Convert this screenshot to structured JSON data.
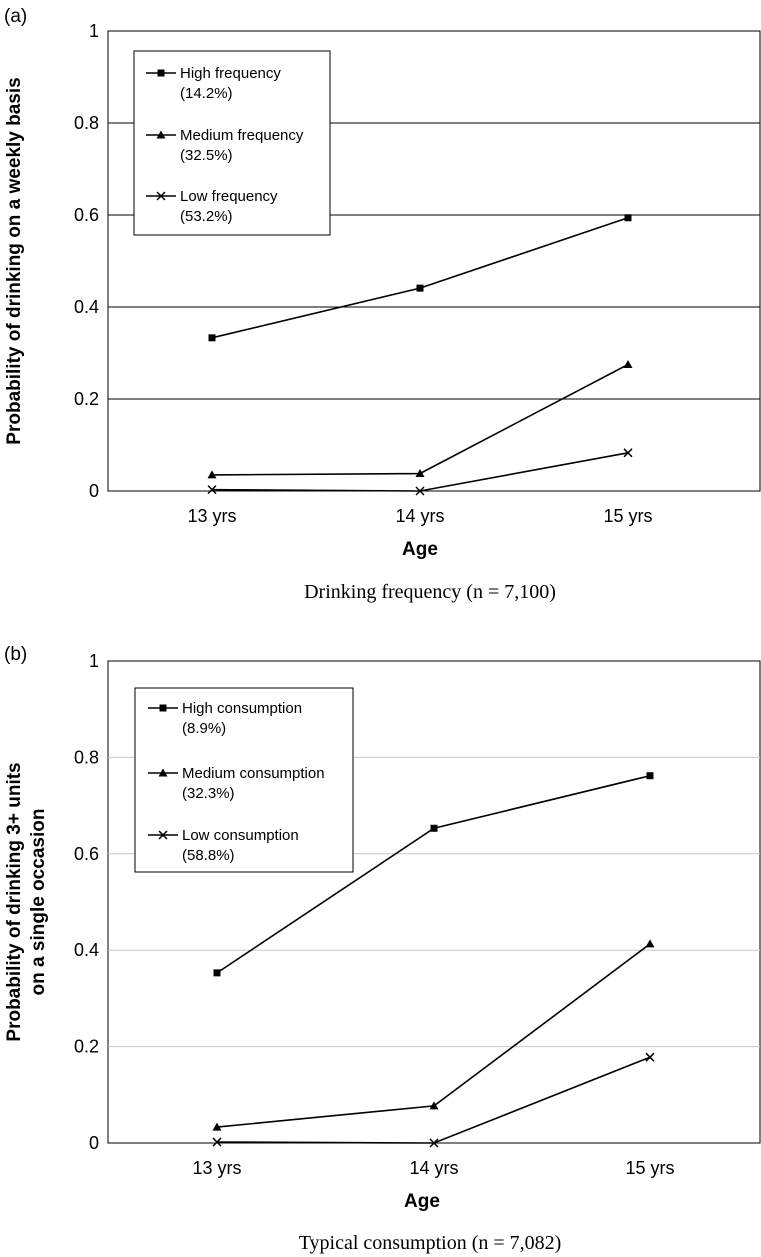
{
  "chart_data": [
    {
      "panel_label": "(a)",
      "type": "line",
      "categories": [
        "13 yrs",
        "14 yrs",
        "15 yrs"
      ],
      "xlabel": "Age",
      "ylabel": "Probability of drinking on a weekly basis",
      "ylim": [
        0,
        1
      ],
      "yticks": [
        "0",
        "0.2",
        "0.4",
        "0.6",
        "0.8",
        "1"
      ],
      "grid": "horizontal",
      "legend_position": "top-left",
      "caption": "Drinking frequency (n = 7,100)",
      "series": [
        {
          "name": "High frequency",
          "share": "(14.2%)",
          "marker": "square",
          "values": [
            0.333,
            0.441,
            0.594
          ]
        },
        {
          "name": "Medium frequency",
          "share": "(32.5%)",
          "marker": "triangle",
          "values": [
            0.035,
            0.038,
            0.275
          ]
        },
        {
          "name": "Low frequency",
          "share": "(53.2%)",
          "marker": "x",
          "values": [
            0.003,
            0.0,
            0.083
          ]
        }
      ]
    },
    {
      "panel_label": "(b)",
      "type": "line",
      "categories": [
        "13 yrs",
        "14 yrs",
        "15 yrs"
      ],
      "xlabel": "Age",
      "ylabel_lines": [
        "Probability of drinking 3+ units",
        "on a single occasion"
      ],
      "ylim": [
        0,
        1
      ],
      "yticks": [
        "0",
        "0.2",
        "0.4",
        "0.6",
        "0.8",
        "1"
      ],
      "grid": "horizontal",
      "legend_position": "top-left",
      "caption": "Typical consumption (n = 7,082)",
      "series": [
        {
          "name": "High consumption",
          "share": "(8.9%)",
          "marker": "square",
          "values": [
            0.353,
            0.653,
            0.762
          ]
        },
        {
          "name": "Medium consumption",
          "share": "(32.3%)",
          "marker": "triangle",
          "values": [
            0.033,
            0.077,
            0.413
          ]
        },
        {
          "name": "Low consumption",
          "share": "(58.8%)",
          "marker": "x",
          "values": [
            0.002,
            0.0,
            0.178
          ]
        }
      ]
    }
  ]
}
